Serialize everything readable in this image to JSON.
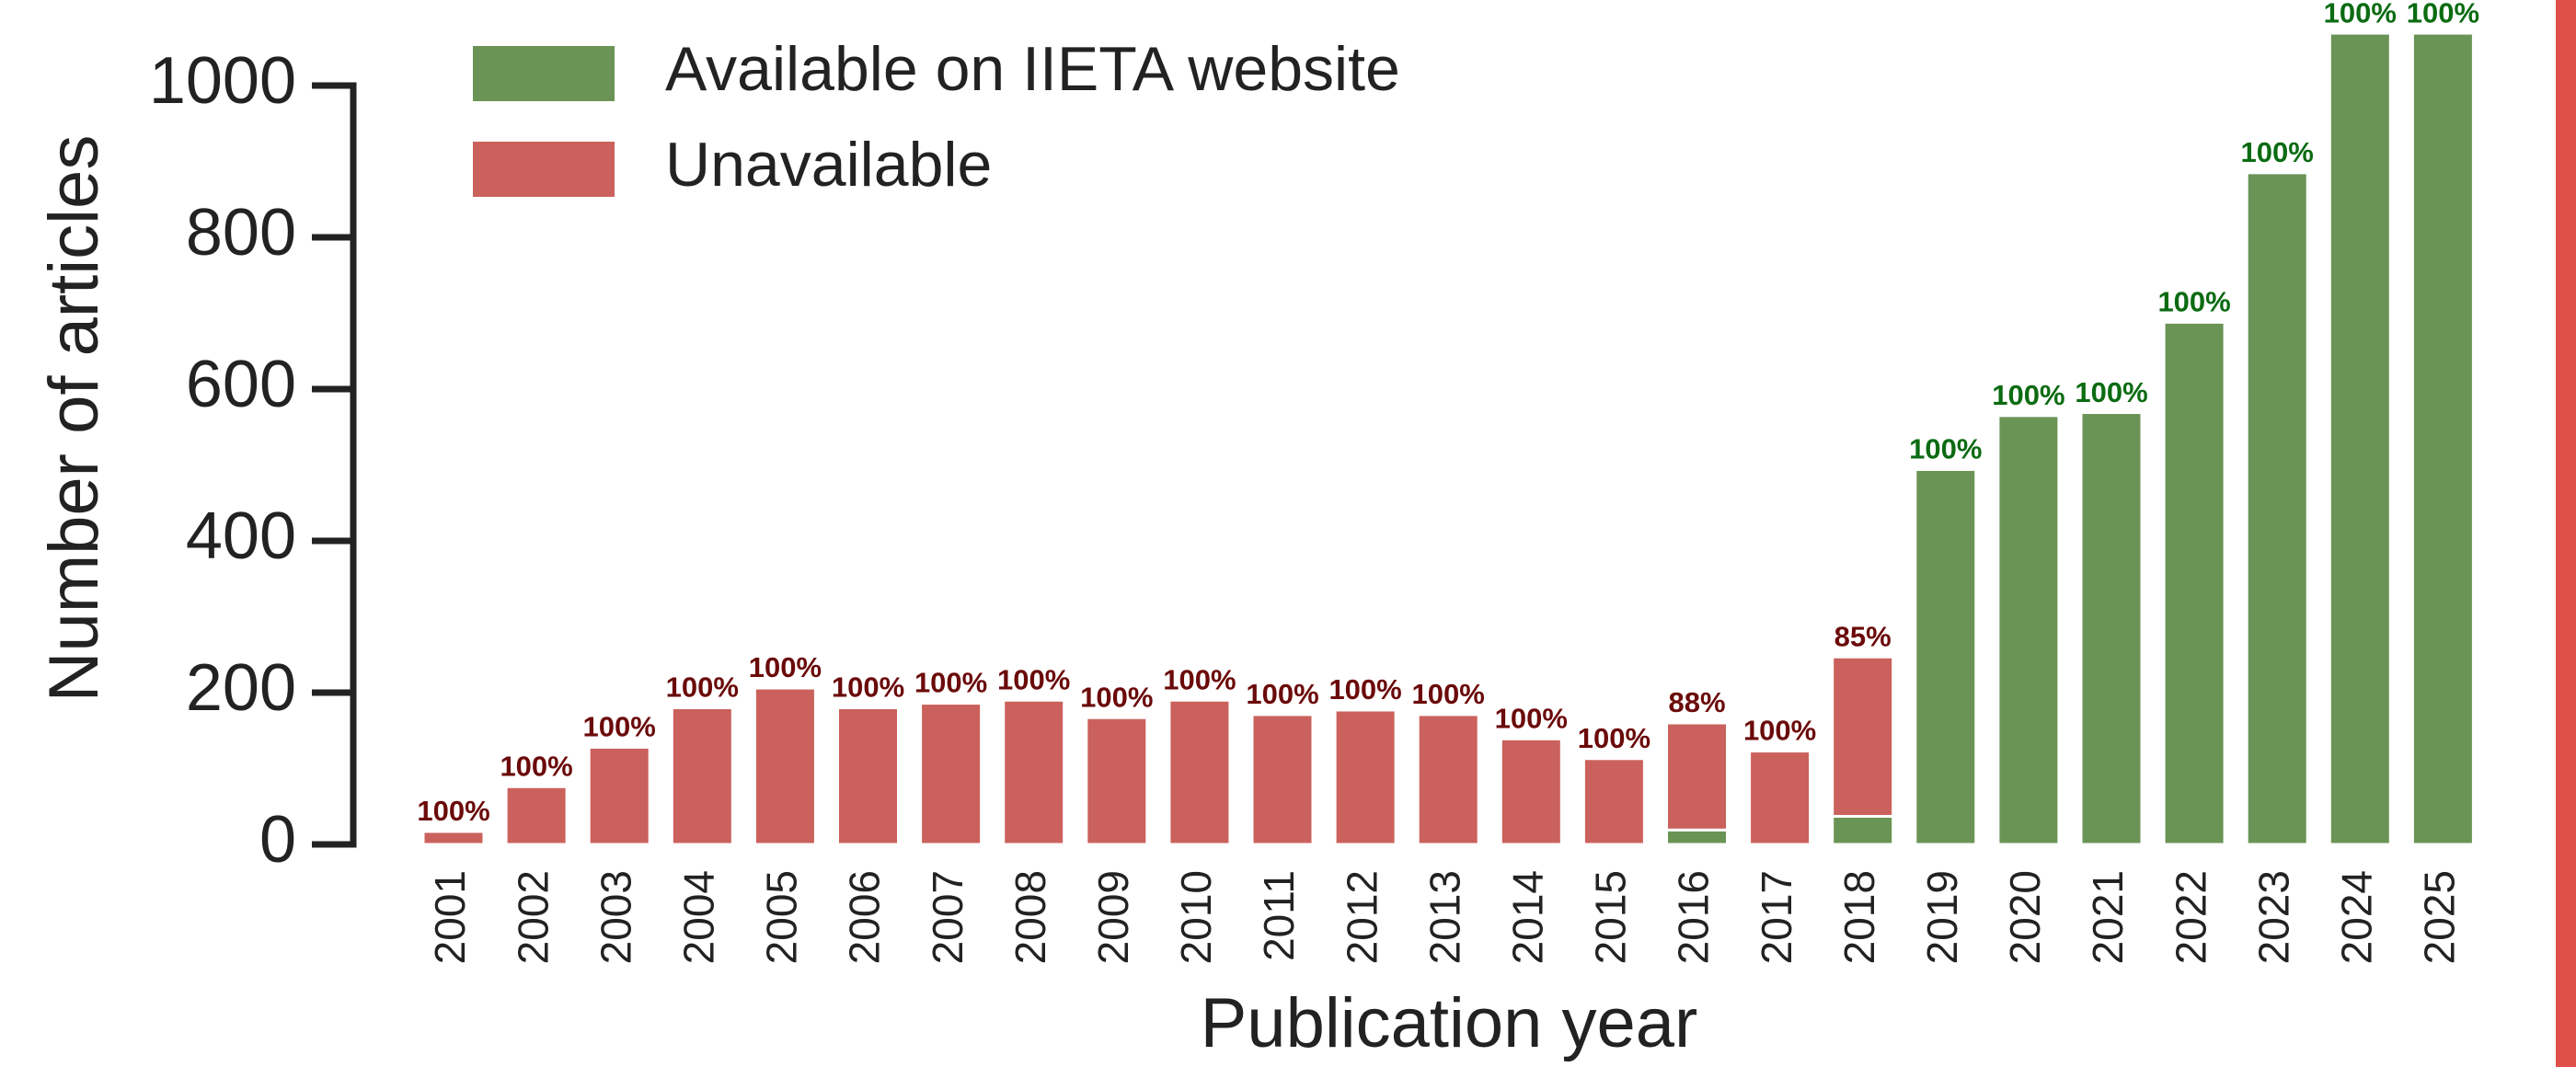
{
  "chart_data": {
    "type": "stacked_bar",
    "xlabel": "Publication year",
    "ylabel": "Number of articles",
    "categories": [
      "2001",
      "2002",
      "2003",
      "2004",
      "2005",
      "2006",
      "2007",
      "2008",
      "2009",
      "2010",
      "2011",
      "2012",
      "2013",
      "2014",
      "2015",
      "2016",
      "2017",
      "2018",
      "2019",
      "2020",
      "2021",
      "2022",
      "2023",
      "2024",
      "2025"
    ],
    "series": [
      {
        "name": "Available on IIETA website",
        "color": "#6a9455",
        "label_color": "#0b6b12",
        "values": [
          0,
          0,
          0,
          0,
          0,
          0,
          0,
          0,
          0,
          0,
          0,
          0,
          0,
          0,
          0,
          19,
          0,
          37,
          494,
          565,
          569,
          688,
          885,
          1069,
          1069
        ]
      },
      {
        "name": "Unavailable",
        "color": "#cb615c",
        "label_color": "#6b0a0a",
        "values": [
          17,
          76,
          128,
          180,
          206,
          180,
          186,
          190,
          167,
          190,
          171,
          177,
          171,
          139,
          113,
          141,
          123,
          210,
          0,
          0,
          0,
          0,
          0,
          0,
          0
        ]
      }
    ],
    "bar_labels": [
      {
        "value": 100,
        "label": "100%"
      },
      {
        "value": 100,
        "label": "100%"
      },
      {
        "value": 100,
        "label": "100%"
      },
      {
        "value": 100,
        "label": "100%"
      },
      {
        "value": 100,
        "label": "100%"
      },
      {
        "value": 100,
        "label": "100%"
      },
      {
        "value": 100,
        "label": "100%"
      },
      {
        "value": 100,
        "label": "100%"
      },
      {
        "value": 100,
        "label": "100%"
      },
      {
        "value": 100,
        "label": "100%"
      },
      {
        "value": 100,
        "label": "100%"
      },
      {
        "value": 100,
        "label": "100%"
      },
      {
        "value": 100,
        "label": "100%"
      },
      {
        "value": 100,
        "label": "100%"
      },
      {
        "value": 100,
        "label": "100%"
      },
      {
        "value": 88,
        "label": "88%"
      },
      {
        "value": 100,
        "label": "100%"
      },
      {
        "value": 85,
        "label": "85%"
      },
      {
        "value": 100,
        "label": "100%"
      },
      {
        "value": 100,
        "label": "100%"
      },
      {
        "value": 100,
        "label": "100%"
      },
      {
        "value": 100,
        "label": "100%"
      },
      {
        "value": 100,
        "label": "100%"
      },
      {
        "value": 100,
        "label": "100%"
      },
      {
        "value": 100,
        "label": "100%"
      }
    ],
    "ylim": [
      0,
      1000
    ],
    "yticks": [
      0,
      200,
      400,
      600,
      800,
      1000
    ],
    "legend": "upper left"
  }
}
